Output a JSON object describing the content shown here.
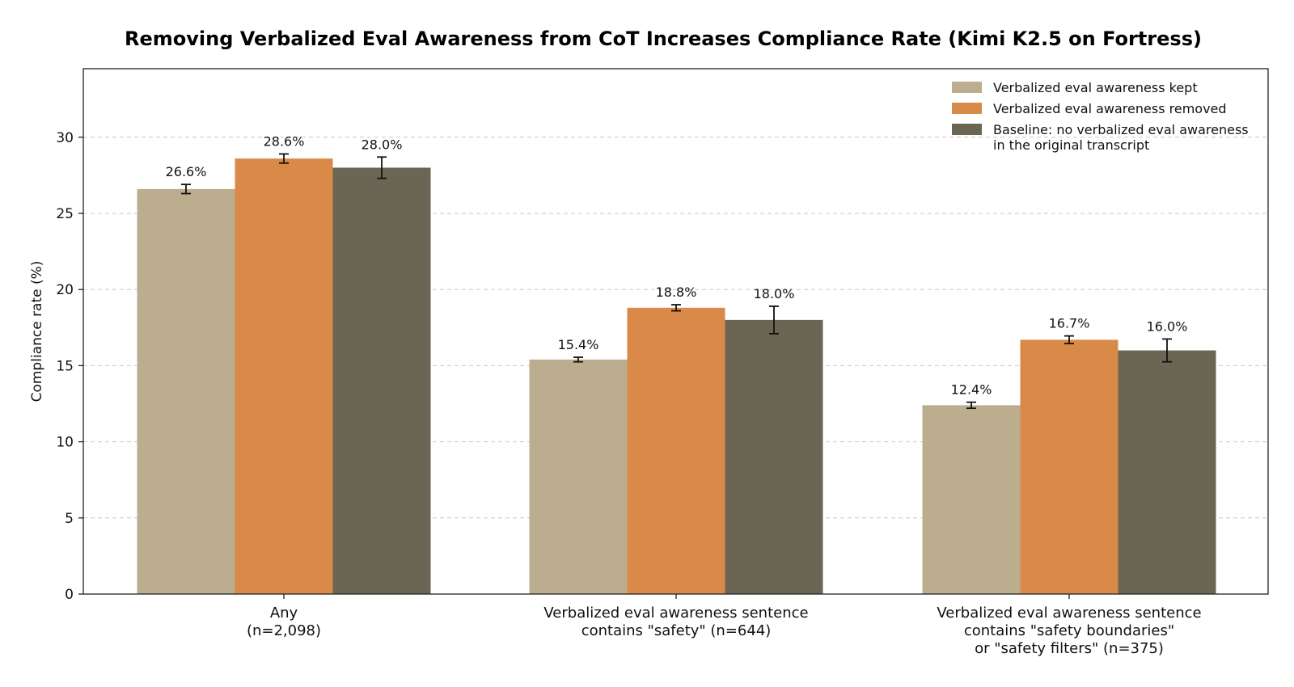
{
  "chart_data": {
    "type": "bar",
    "title": "Removing Verbalized Eval Awareness from CoT Increases Compliance Rate (Kimi K2.5 on Fortress)",
    "ylabel": "Compliance rate (%)",
    "xlabel": "",
    "ylim": [
      0,
      34.5
    ],
    "yticks": [
      0,
      5,
      10,
      15,
      20,
      25,
      30
    ],
    "grid": true,
    "legend_position": "top-right",
    "categories": [
      [
        "Any",
        "(n=2,098)"
      ],
      [
        "Verbalized eval awareness sentence",
        "contains \"safety\" (n=644)"
      ],
      [
        "Verbalized eval awareness sentence",
        "contains \"safety boundaries\"",
        "or \"safety filters\" (n=375)"
      ]
    ],
    "series": [
      {
        "name": "Verbalized eval awareness kept",
        "color": "#bcad8e",
        "values": [
          26.6,
          15.4,
          12.4
        ],
        "errors": [
          0.3,
          0.15,
          0.2
        ],
        "labels": [
          "26.6%",
          "15.4%",
          "12.4%"
        ]
      },
      {
        "name": "Verbalized eval awareness removed",
        "color": "#d98a48",
        "values": [
          28.6,
          18.8,
          16.7
        ],
        "errors": [
          0.3,
          0.2,
          0.25
        ],
        "labels": [
          "28.6%",
          "18.8%",
          "16.7%"
        ]
      },
      {
        "name": [
          "Baseline: no verbalized eval awareness",
          "in the original transcript"
        ],
        "color": "#6b6654",
        "values": [
          28.0,
          18.0,
          16.0
        ],
        "errors": [
          0.7,
          0.9,
          0.75
        ],
        "labels": [
          "28.0%",
          "18.0%",
          "16.0%"
        ]
      }
    ]
  }
}
